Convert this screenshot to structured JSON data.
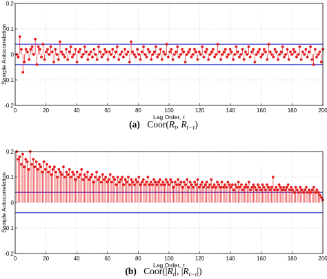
{
  "chart_data": [
    {
      "type": "stem",
      "panel": "a",
      "caption_label": "(a)",
      "caption_text": "Coor(R_t, R_{t-τ})",
      "ylabel": "Sample Autocorrelation",
      "xlabel": "Lag Order, τ",
      "xlim": [
        0,
        200
      ],
      "ylim": [
        -0.2,
        0.2
      ],
      "xticks": [
        0,
        20,
        40,
        60,
        80,
        100,
        120,
        140,
        160,
        180,
        200
      ],
      "yticks": [
        -0.2,
        -0.1,
        0,
        0.1,
        0.2
      ],
      "grid": true,
      "confidence_bounds": [
        0.04,
        -0.04
      ],
      "colors": {
        "stems": "#e41a1c",
        "bounds": "#2a2ad0",
        "grid": "#c8c8c8"
      },
      "values": [
        0.0,
        -0.01,
        0.07,
        0.02,
        -0.07,
        -0.03,
        0.02,
        0.01,
        -0.02,
        0.02,
        0.03,
        0.0,
        0.06,
        -0.04,
        0.03,
        0.02,
        -0.01,
        0.04,
        -0.02,
        0.01,
        0.02,
        0.0,
        0.03,
        0.01,
        -0.03,
        0.02,
        0.0,
        -0.02,
        0.05,
        0.01,
        0.0,
        -0.01,
        0.02,
        -0.02,
        0.01,
        0.03,
        -0.01,
        0.0,
        0.02,
        -0.03,
        0.01,
        0.02,
        -0.01,
        0.0,
        0.03,
        0.01,
        -0.02,
        0.0,
        0.01,
        -0.01,
        0.02,
        0.0,
        -0.02,
        0.03,
        0.01,
        -0.01,
        0.0,
        0.02,
        0.01,
        -0.02,
        0.01,
        0.0,
        0.02,
        -0.01,
        0.01,
        0.03,
        -0.02,
        0.0,
        0.01,
        -0.01,
        0.02,
        0.0,
        0.01,
        -0.03,
        0.05,
        0.01,
        0.0,
        -0.01,
        0.02,
        0.0,
        -0.02,
        0.01,
        0.03,
        0.0,
        -0.01,
        0.02,
        0.01,
        -0.02,
        0.0,
        0.01,
        0.03,
        -0.01,
        0.0,
        0.02,
        -0.02,
        0.01,
        0.0,
        0.04,
        -0.01,
        0.01,
        0.02,
        -0.02,
        0.0,
        0.01,
        0.03,
        -0.01,
        0.0,
        0.02,
        0.01,
        -0.03,
        0.0,
        0.01,
        0.02,
        -0.01,
        0.0,
        0.02,
        0.01,
        -0.02,
        0.01,
        0.0,
        0.03,
        -0.01,
        0.01,
        0.02,
        -0.02,
        0.0,
        0.01,
        0.02,
        -0.01,
        0.0,
        0.04,
        0.01,
        -0.02,
        0.0,
        0.01,
        0.02,
        -0.01,
        0.0,
        0.02,
        0.01,
        -0.02,
        0.0,
        0.03,
        0.01,
        -0.01,
        0.0,
        0.02,
        -0.02,
        0.01,
        0.0,
        0.03,
        -0.01,
        0.01,
        0.02,
        -0.03,
        0.0,
        0.01,
        0.02,
        -0.01,
        0.0,
        0.02,
        0.01,
        -0.02,
        0.04,
        0.01,
        0.0,
        -0.01,
        0.02,
        0.01,
        -0.02,
        0.0,
        0.01,
        0.03,
        -0.01,
        0.0,
        0.02,
        -0.02,
        0.01,
        0.0,
        0.02,
        0.01,
        -0.01,
        0.0,
        0.03,
        -0.02,
        0.01,
        0.0,
        0.02,
        -0.01,
        0.01,
        0.03,
        -0.02,
        -0.04,
        0.02,
        -0.01,
        0.0,
        0.01,
        -0.03,
        0.02
      ]
    },
    {
      "type": "stem",
      "panel": "b",
      "caption_label": "(b)",
      "caption_text": "Coor(|R_t|, |R_{t-τ}|)",
      "ylabel": "Sample Autocorrelation",
      "xlabel": "Lag Order, τ",
      "xlim": [
        0,
        200
      ],
      "ylim": [
        -0.2,
        0.2
      ],
      "xticks": [
        0,
        20,
        40,
        60,
        80,
        100,
        120,
        140,
        160,
        180,
        200
      ],
      "yticks": [
        -0.2,
        -0.1,
        0,
        0.1,
        0.2
      ],
      "grid": true,
      "confidence_bounds": [
        0.04,
        -0.04
      ],
      "colors": {
        "stems": "#e41a1c",
        "bounds": "#2a2ad0",
        "grid": "#c8c8c8"
      },
      "values": [
        0.2,
        0.17,
        0.18,
        0.15,
        0.19,
        0.14,
        0.17,
        0.16,
        0.13,
        0.2,
        0.15,
        0.17,
        0.14,
        0.16,
        0.13,
        0.15,
        0.14,
        0.12,
        0.16,
        0.13,
        0.15,
        0.12,
        0.14,
        0.11,
        0.13,
        0.14,
        0.12,
        0.1,
        0.13,
        0.12,
        0.11,
        0.14,
        0.1,
        0.12,
        0.11,
        0.13,
        0.1,
        0.12,
        0.11,
        0.09,
        0.12,
        0.1,
        0.11,
        0.13,
        0.09,
        0.11,
        0.1,
        0.12,
        0.09,
        0.1,
        0.11,
        0.08,
        0.1,
        0.12,
        0.09,
        0.1,
        0.08,
        0.11,
        0.09,
        0.1,
        0.08,
        0.09,
        0.11,
        0.08,
        0.1,
        0.09,
        0.07,
        0.1,
        0.08,
        0.09,
        0.1,
        0.07,
        0.09,
        0.08,
        0.1,
        0.07,
        0.09,
        0.08,
        0.07,
        0.09,
        0.08,
        0.1,
        0.07,
        0.08,
        0.09,
        0.07,
        0.08,
        0.1,
        0.07,
        0.08,
        0.07,
        0.09,
        0.08,
        0.07,
        0.08,
        0.09,
        0.07,
        0.08,
        0.07,
        0.09,
        0.08,
        0.07,
        0.09,
        0.08,
        0.06,
        0.08,
        0.07,
        0.09,
        0.07,
        0.08,
        0.06,
        0.08,
        0.07,
        0.09,
        0.06,
        0.08,
        0.07,
        0.06,
        0.08,
        0.07,
        0.09,
        0.06,
        0.07,
        0.08,
        0.06,
        0.07,
        0.08,
        0.06,
        0.07,
        0.09,
        0.06,
        0.07,
        0.06,
        0.08,
        0.07,
        0.06,
        0.08,
        0.06,
        0.07,
        0.06,
        0.08,
        0.07,
        0.06,
        0.07,
        0.05,
        0.07,
        0.06,
        0.08,
        0.06,
        0.07,
        0.05,
        0.06,
        0.07,
        0.06,
        0.08,
        0.05,
        0.06,
        0.07,
        0.06,
        0.05,
        0.07,
        0.06,
        0.05,
        0.07,
        0.06,
        0.05,
        0.07,
        0.06,
        0.05,
        0.06,
        0.1,
        0.05,
        0.06,
        0.05,
        0.07,
        0.06,
        0.05,
        0.06,
        0.05,
        0.06,
        0.07,
        0.05,
        0.06,
        0.05,
        0.04,
        0.06,
        0.05,
        0.04,
        0.06,
        0.05,
        0.04,
        0.05,
        0.06,
        0.04,
        0.05,
        0.04,
        0.05,
        0.06,
        0.04,
        0.05,
        0.04,
        0.03,
        0.02,
        0.01
      ]
    }
  ]
}
